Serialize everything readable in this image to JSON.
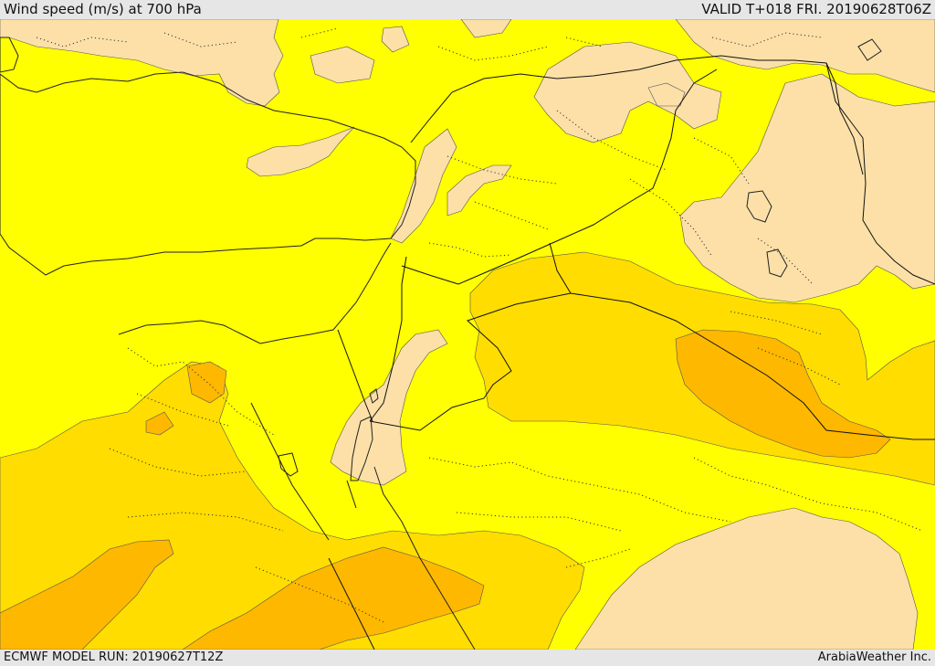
{
  "header": {
    "title": "Wind speed (m/s) at 700 hPa",
    "valid": "VALID T+018 FRI. 20190628T06Z"
  },
  "footer": {
    "model_run": "ECMWF MODEL RUN: 20190627T12Z",
    "credit": "ArabiaWeather Inc."
  },
  "map": {
    "colors": {
      "calm": "#fce0a8",
      "light": "#ffff00",
      "moderate": "#ffdd00",
      "strong": "#ffb800",
      "sea": "#ffffff"
    }
  }
}
